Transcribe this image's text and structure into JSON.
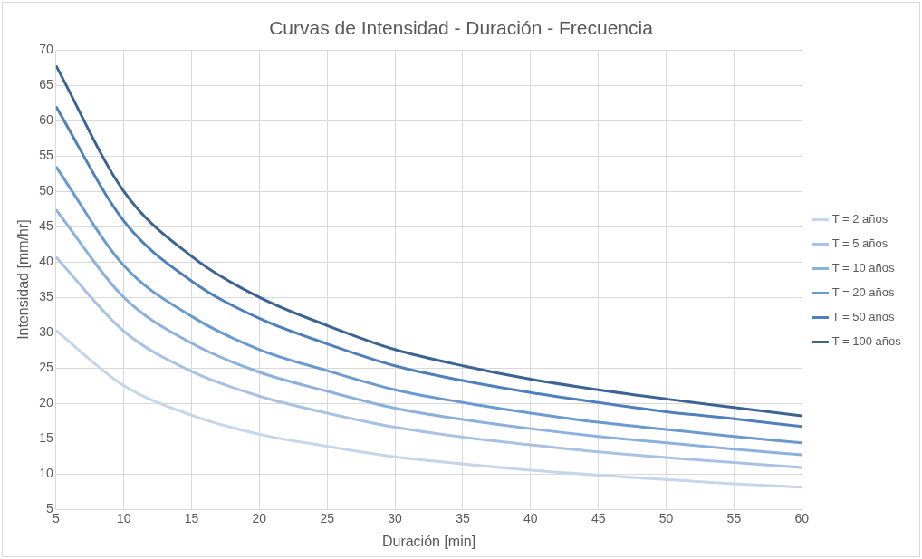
{
  "chart_data": {
    "type": "line",
    "title": "Curvas de Intensidad - Duración - Frecuencia",
    "xlabel": "Duración [min]",
    "ylabel": "Intensidad [mm/hr]",
    "x": [
      5,
      10,
      15,
      20,
      25,
      30,
      35,
      40,
      45,
      50,
      55,
      60
    ],
    "series": [
      {
        "name": "T = 2 años",
        "color": "#c5d5ea",
        "values": [
          30.3,
          22.5,
          18.3,
          15.6,
          13.9,
          12.4,
          11.4,
          10.5,
          9.8,
          9.2,
          8.6,
          8.1
        ]
      },
      {
        "name": "T = 5 años",
        "color": "#a9c2e4",
        "values": [
          40.7,
          30.2,
          24.5,
          21,
          18.6,
          16.6,
          15.2,
          14.1,
          13.1,
          12.3,
          11.6,
          10.9
        ]
      },
      {
        "name": "T = 10 años",
        "color": "#8db1dd",
        "values": [
          47.4,
          35,
          28.5,
          24.4,
          21.7,
          19.3,
          17.7,
          16.4,
          15.3,
          14.4,
          13.5,
          12.7
        ]
      },
      {
        "name": "T = 20 años",
        "color": "#6b9ad0",
        "values": [
          53.5,
          39.5,
          32.3,
          27.6,
          24.6,
          21.9,
          20.1,
          18.6,
          17.3,
          16.3,
          15.3,
          14.4
        ]
      },
      {
        "name": "T = 50 años",
        "color": "#4f80bb",
        "values": [
          62,
          45.8,
          37.3,
          32,
          28.4,
          25.3,
          23.2,
          21.5,
          20.1,
          18.8,
          17.8,
          16.7
        ]
      },
      {
        "name": "T = 100 años",
        "color": "#3b6493",
        "values": [
          67.8,
          50,
          40.8,
          35,
          31,
          27.6,
          25.3,
          23.4,
          21.9,
          20.6,
          19.4,
          18.2
        ]
      }
    ],
    "xlim": [
      5,
      60
    ],
    "xticks": [
      5,
      10,
      15,
      20,
      25,
      30,
      35,
      40,
      45,
      50,
      55,
      60
    ],
    "ylim": [
      5,
      70
    ],
    "yticks": [
      5,
      10,
      15,
      20,
      25,
      30,
      35,
      40,
      45,
      50,
      55,
      60,
      65,
      70
    ],
    "grid": true,
    "legend": "right",
    "marker": "none",
    "line_style": "solid"
  }
}
